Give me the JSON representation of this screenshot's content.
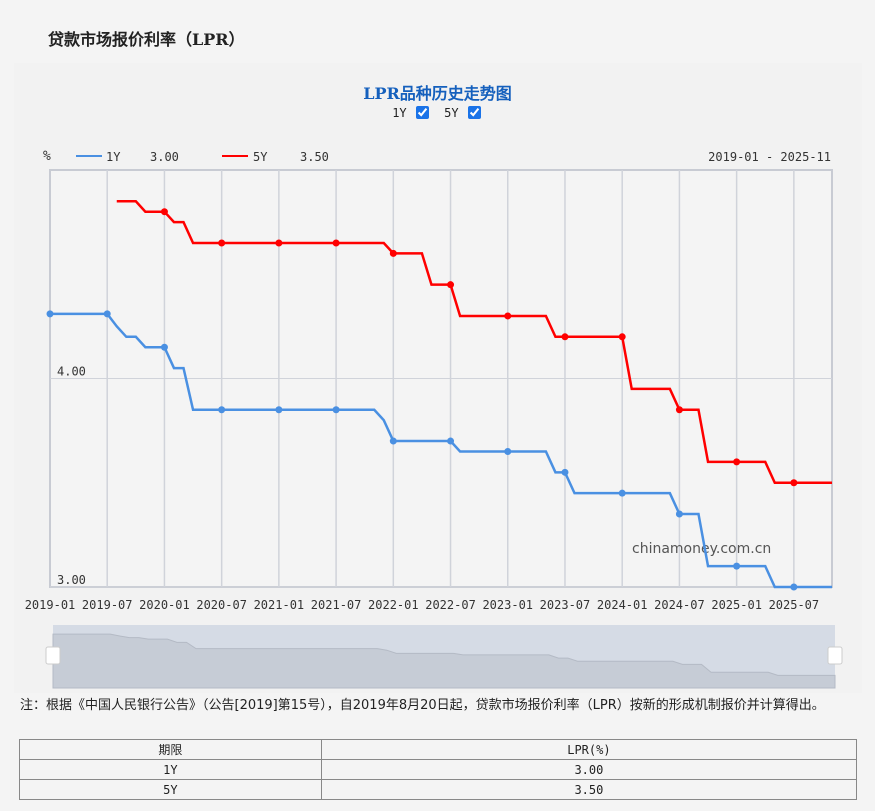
{
  "page_title": "贷款市场报价利率（LPR）",
  "chart_title": "LPR品种历史走势图",
  "toggles": [
    {
      "label": "1Y",
      "checked": true
    },
    {
      "label": "5Y",
      "checked": true
    }
  ],
  "legend": {
    "unit": "%",
    "items": [
      {
        "name": "1Y",
        "value": "3.00"
      },
      {
        "name": "5Y",
        "value": "3.50"
      }
    ],
    "range": "2019-01 - 2025-11"
  },
  "watermark": "chinamoney.com.cn",
  "chart_data": {
    "type": "line",
    "x_range": [
      "2019-01",
      "2025-11"
    ],
    "ylim": [
      3.0,
      5.0
    ],
    "y_ticks": [
      "4.00",
      "3.00"
    ],
    "x_ticks": [
      "2019-01",
      "2019-07",
      "2020-01",
      "2020-07",
      "2021-01",
      "2021-07",
      "2022-01",
      "2022-07",
      "2023-01",
      "2023-07",
      "2024-01",
      "2024-07",
      "2025-01",
      "2025-07"
    ],
    "grid": true,
    "legend_position": "top-left",
    "series": [
      {
        "name": "1Y",
        "color": "#4a90e2",
        "changes": [
          [
            "2019-01",
            4.31
          ],
          [
            "2019-08",
            4.25
          ],
          [
            "2019-09",
            4.2
          ],
          [
            "2019-11",
            4.15
          ],
          [
            "2020-02",
            4.05
          ],
          [
            "2020-04",
            3.85
          ],
          [
            "2021-12",
            3.8
          ],
          [
            "2022-01",
            3.7
          ],
          [
            "2022-08",
            3.65
          ],
          [
            "2023-06",
            3.55
          ],
          [
            "2023-08",
            3.45
          ],
          [
            "2024-07",
            3.35
          ],
          [
            "2024-10",
            3.1
          ],
          [
            "2025-05",
            3.0
          ]
        ]
      },
      {
        "name": "5Y",
        "color": "#ff0000",
        "changes": [
          [
            "2019-08",
            4.85
          ],
          [
            "2019-11",
            4.8
          ],
          [
            "2020-02",
            4.75
          ],
          [
            "2020-04",
            4.65
          ],
          [
            "2022-01",
            4.6
          ],
          [
            "2022-05",
            4.45
          ],
          [
            "2022-08",
            4.3
          ],
          [
            "2023-06",
            4.2
          ],
          [
            "2024-02",
            3.95
          ],
          [
            "2024-07",
            3.85
          ],
          [
            "2024-10",
            3.6
          ],
          [
            "2025-05",
            3.5
          ]
        ]
      }
    ]
  },
  "note": "注：根据《中国人民银行公告》（公告[2019]第15号），自2019年8月20日起，贷款市场报价利率（LPR）按新的形成机制报价并计算得出。",
  "table": {
    "headers": [
      "期限",
      "LPR(%)"
    ],
    "rows": [
      [
        "1Y",
        "3.00"
      ],
      [
        "5Y",
        "3.50"
      ]
    ]
  }
}
